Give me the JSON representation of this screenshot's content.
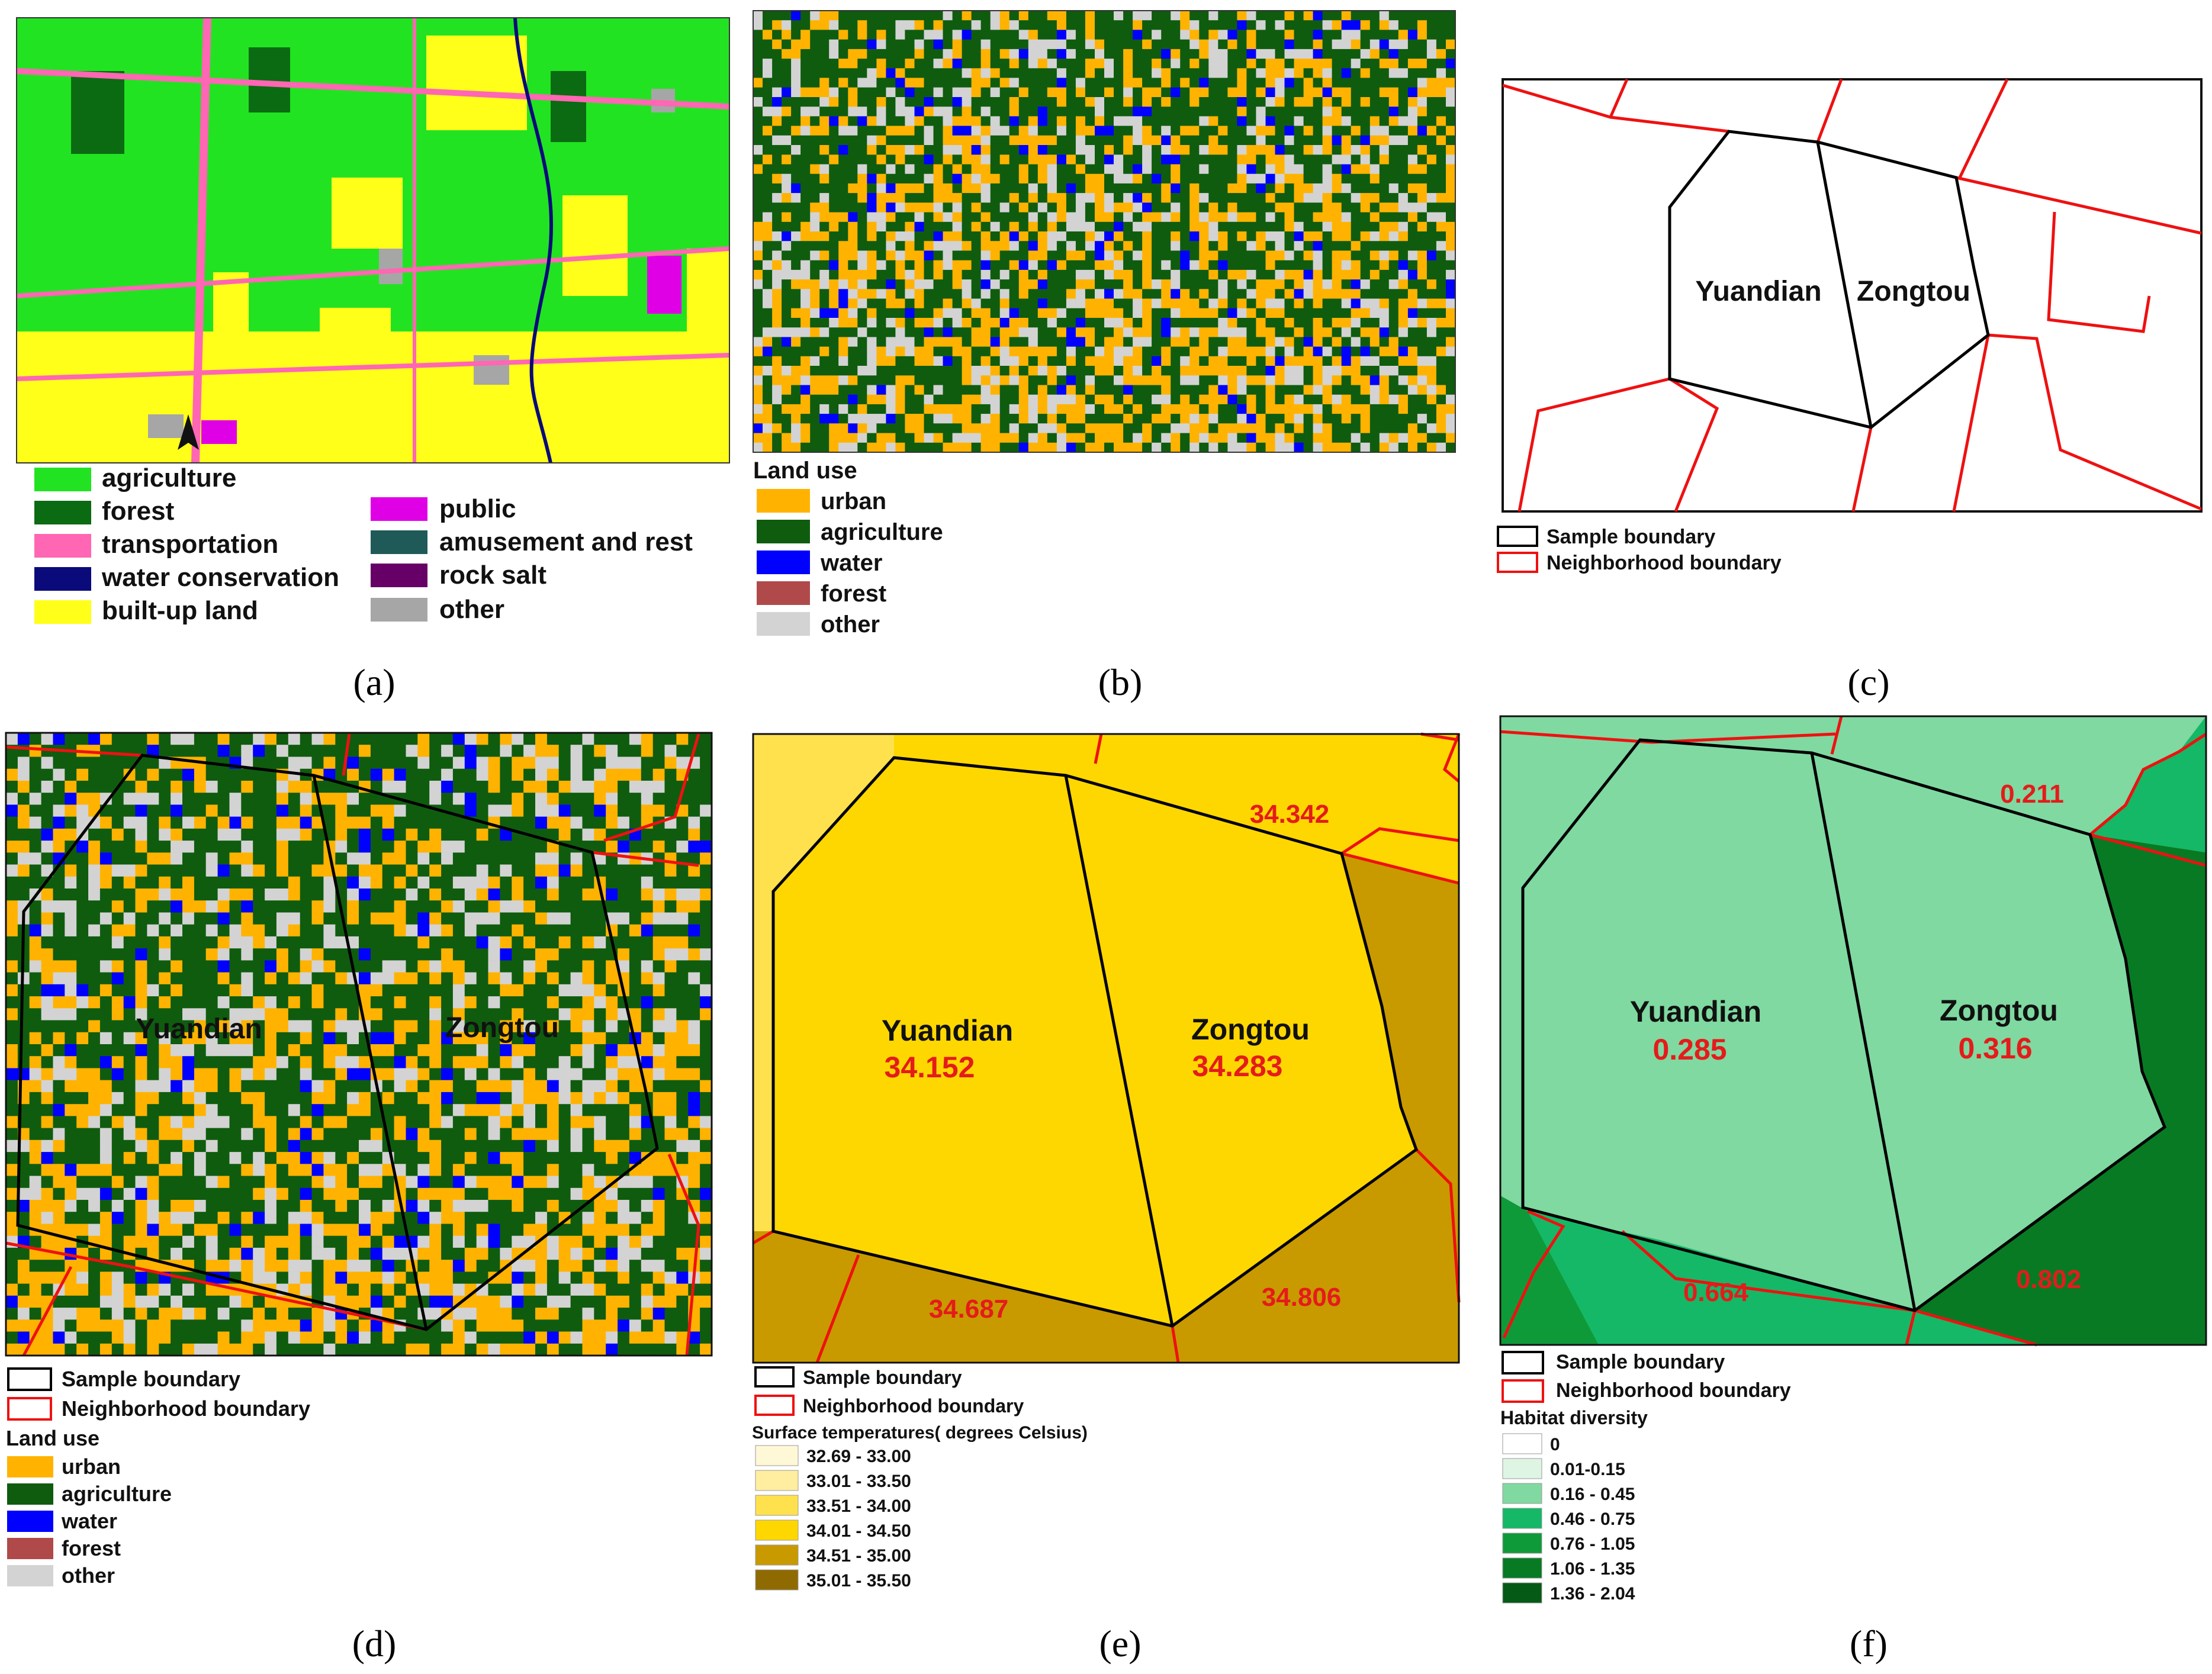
{
  "palette": {
    "agriculture_a": "#22e322",
    "forest_a": "#0a6b12",
    "transportation": "#ff66b3",
    "water_conservation": "#0a0a7a",
    "builtup": "#ffff1a",
    "public": "#e000e6",
    "amusement": "#1f5a59",
    "rocksalt": "#660066",
    "other_a": "#a6a6a6",
    "urban": "#ffb300",
    "agriculture": "#0f5c0f",
    "water": "#0000ff",
    "forest": "#b04a4a",
    "other": "#d3d3d3",
    "sample_boundary": "#000000",
    "neighborhood_boundary": "#ff0000"
  },
  "panel_a": {
    "label": "(a)",
    "legend_col1": [
      "agriculture",
      "forest",
      "transportation",
      "water conservation",
      "built-up land"
    ],
    "legend_col2": [
      "public",
      "amusement and rest",
      "rock salt",
      "other"
    ],
    "north_arrow": "north-arrow-icon"
  },
  "panel_b": {
    "label": "(b)",
    "legend_title": "Land use",
    "legend": [
      "urban",
      "agriculture",
      "water",
      "forest",
      "other"
    ]
  },
  "panel_c": {
    "label": "(c)",
    "village1": "Yuandian",
    "village2": "Zongtou",
    "legend": [
      "Sample boundary",
      "Neighborhood boundary"
    ]
  },
  "panel_d": {
    "label": "(d)",
    "village1": "Yuandian",
    "village2": "Zongtou",
    "legend_boundaries": [
      "Sample boundary",
      "Neighborhood boundary"
    ],
    "legend_title": "Land use",
    "legend": [
      "urban",
      "agriculture",
      "water",
      "forest",
      "other"
    ]
  },
  "panel_e": {
    "label": "(e)",
    "village1": "Yuandian",
    "village2": "Zongtou",
    "values": {
      "yuandian": "34.152",
      "zongtou": "34.283",
      "northeast": "34.342",
      "southwest": "34.687",
      "southeast": "34.806"
    },
    "legend_boundaries": [
      "Sample boundary",
      "Neighborhood boundary"
    ],
    "legend_title": "Surface temperatures( degrees Celsius)",
    "classes": [
      {
        "range": "32.69 - 33.00",
        "color": "#fff8d6"
      },
      {
        "range": "33.01 - 33.50",
        "color": "#ffeea0"
      },
      {
        "range": "33.51 - 34.00",
        "color": "#ffe14d"
      },
      {
        "range": "34.01 - 34.50",
        "color": "#ffd700"
      },
      {
        "range": "34.51 - 35.00",
        "color": "#c89a00"
      },
      {
        "range": "35.01 - 35.50",
        "color": "#8f6a00"
      }
    ]
  },
  "panel_f": {
    "label": "(f)",
    "village1": "Yuandian",
    "village2": "Zongtou",
    "values": {
      "yuandian": "0.285",
      "zongtou": "0.316",
      "north": "0.211",
      "southwest": "0.664",
      "southeast": "0.802"
    },
    "legend_boundaries": [
      "Sample boundary",
      "Neighborhood boundary"
    ],
    "legend_title": "Habitat diversity",
    "classes": [
      {
        "range": "0",
        "color": "#ffffff"
      },
      {
        "range": "0.01-0.15",
        "color": "#dff5e4"
      },
      {
        "range": "0.16 - 0.45",
        "color": "#7fd9a0"
      },
      {
        "range": "0.46 - 0.75",
        "color": "#15b866"
      },
      {
        "range": "0.76 - 1.05",
        "color": "#0f9a3a"
      },
      {
        "range": "1.06 - 1.35",
        "color": "#087a24"
      },
      {
        "range": "1.36 - 2.04",
        "color": "#055a16"
      }
    ]
  }
}
